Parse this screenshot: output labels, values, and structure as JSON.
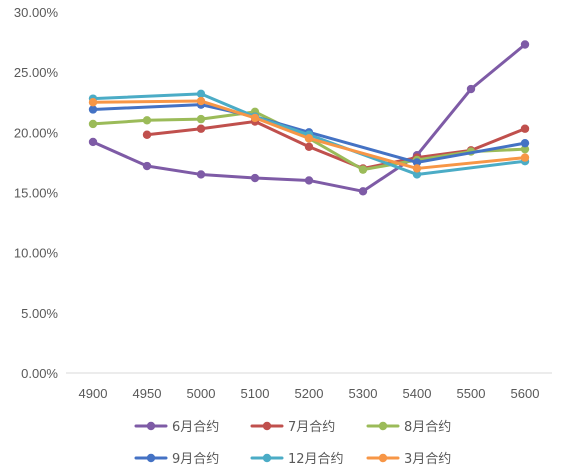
{
  "chart_data": {
    "type": "line",
    "categories": [
      "4900",
      "4950",
      "5000",
      "5100",
      "5200",
      "5300",
      "5400",
      "5500",
      "5600"
    ],
    "ylim": [
      0,
      30
    ],
    "yticks": [
      "0.00%",
      "5.00%",
      "10.00%",
      "15.00%",
      "20.00%",
      "25.00%",
      "30.00%"
    ],
    "grid": false,
    "legend_position": "bottom",
    "series": [
      {
        "name": "6月合约",
        "color": "#7e5ba6",
        "values": [
          19.2,
          17.2,
          16.5,
          16.2,
          16.0,
          15.1,
          18.1,
          23.6,
          27.3
        ]
      },
      {
        "name": "7月合约",
        "color": "#c0504d",
        "values": [
          null,
          19.8,
          20.3,
          20.9,
          18.8,
          17.0,
          17.9,
          18.5,
          20.3
        ]
      },
      {
        "name": "8月合约",
        "color": "#9bbb59",
        "values": [
          20.7,
          21.0,
          21.1,
          21.7,
          19.5,
          16.9,
          17.7,
          18.4,
          18.6
        ]
      },
      {
        "name": "9月合约",
        "color": "#4472c4",
        "values": [
          21.9,
          null,
          22.3,
          21.3,
          20.0,
          null,
          17.5,
          null,
          19.1
        ]
      },
      {
        "name": "12月合约",
        "color": "#4bacc6",
        "values": [
          22.8,
          null,
          23.2,
          21.3,
          19.8,
          null,
          16.5,
          null,
          17.6
        ]
      },
      {
        "name": "3月合约",
        "color": "#f79646",
        "values": [
          22.5,
          null,
          22.6,
          21.2,
          19.5,
          null,
          17.0,
          null,
          17.9
        ]
      }
    ]
  }
}
